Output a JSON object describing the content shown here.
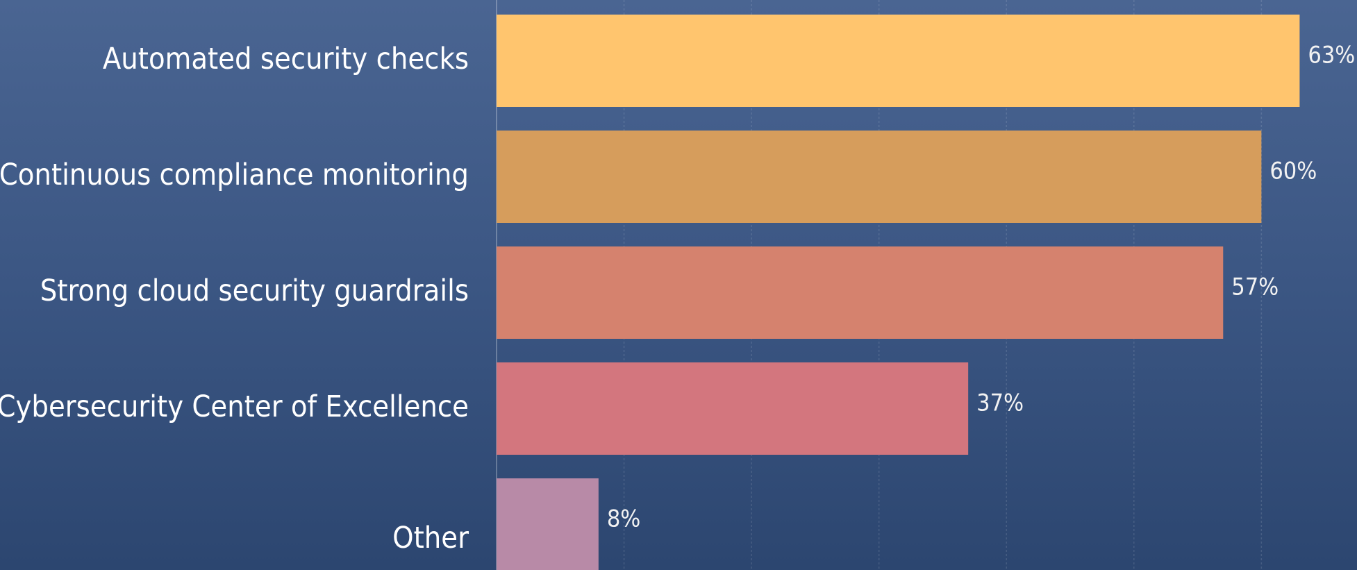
{
  "chart_data": {
    "type": "hbar",
    "categories": [
      "Automated security checks",
      "Continuous compliance monitoring",
      "Strong cloud security guardrails",
      "Cybersecurity Center of Excellence",
      "Other"
    ],
    "values": [
      63,
      60,
      57,
      37,
      8
    ],
    "value_labels": [
      "63%",
      "60%",
      "57%",
      "37%",
      "8%"
    ],
    "colors": [
      "#ffc56e",
      "#d69d5c",
      "#d5826e",
      "#d3767e",
      "#b88aa7"
    ],
    "xlim": [
      0,
      67.5
    ],
    "xticks": [
      0,
      10,
      20,
      30,
      40,
      50,
      60
    ],
    "grid": true
  }
}
